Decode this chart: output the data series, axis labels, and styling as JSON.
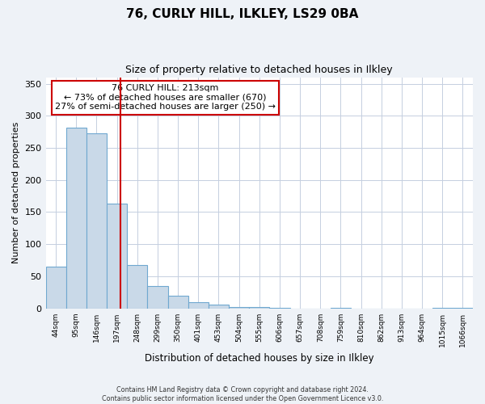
{
  "title": "76, CURLY HILL, ILKLEY, LS29 0BA",
  "subtitle": "Size of property relative to detached houses in Ilkley",
  "xlabel": "Distribution of detached houses by size in Ilkley",
  "ylabel": "Number of detached properties",
  "bar_values": [
    65,
    282,
    273,
    163,
    67,
    35,
    20,
    10,
    6,
    2,
    2,
    1,
    0,
    0,
    1,
    0,
    0,
    0,
    0,
    1,
    1
  ],
  "bin_labels": [
    "44sqm",
    "95sqm",
    "146sqm",
    "197sqm",
    "248sqm",
    "299sqm",
    "350sqm",
    "401sqm",
    "453sqm",
    "504sqm",
    "555sqm",
    "606sqm",
    "657sqm",
    "708sqm",
    "759sqm",
    "810sqm",
    "862sqm",
    "913sqm",
    "964sqm",
    "1015sqm",
    "1066sqm"
  ],
  "num_bins": 21,
  "bar_color": "#c9d9e8",
  "bar_edge_color": "#6fa8d0",
  "vline_x": 3.18,
  "vline_color": "#cc0000",
  "annotation_box_color": "#cc0000",
  "annotation_lines": [
    "76 CURLY HILL: 213sqm",
    "← 73% of detached houses are smaller (670)",
    "27% of semi-detached houses are larger (250) →"
  ],
  "ylim": [
    0,
    360
  ],
  "yticks": [
    0,
    50,
    100,
    150,
    200,
    250,
    300,
    350
  ],
  "footer_lines": [
    "Contains HM Land Registry data © Crown copyright and database right 2024.",
    "Contains public sector information licensed under the Open Government Licence v3.0."
  ],
  "background_color": "#eef2f7",
  "plot_bg_color": "#ffffff",
  "grid_color": "#c5cfe0"
}
